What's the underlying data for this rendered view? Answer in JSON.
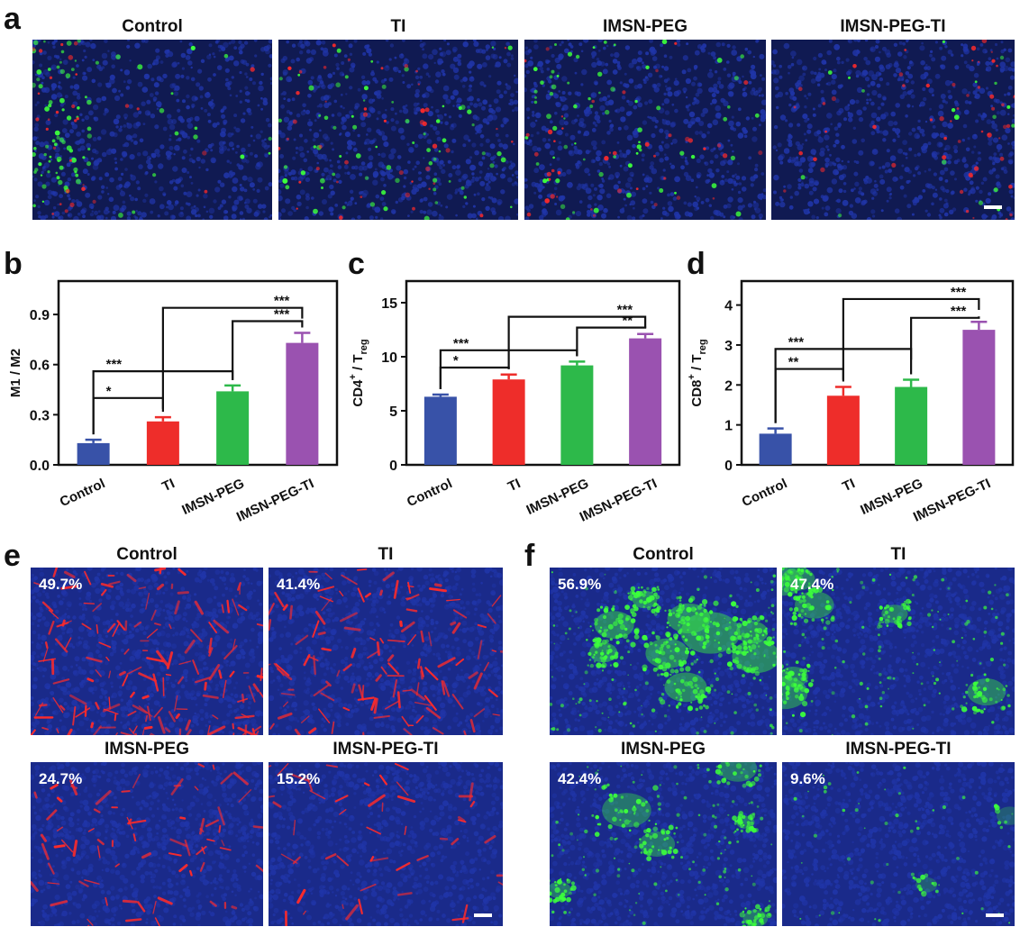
{
  "panel_a": {
    "label": "a",
    "images": [
      {
        "title": "Control"
      },
      {
        "title": "TI"
      },
      {
        "title": "IMSN-PEG"
      },
      {
        "title": "IMSN-PEG-TI"
      }
    ]
  },
  "chart_data": [
    {
      "label": "b",
      "type": "bar",
      "categories": [
        "Control",
        "TI",
        "IMSN-PEG",
        "IMSN-PEG-TI"
      ],
      "values": [
        0.13,
        0.26,
        0.44,
        0.73
      ],
      "errors": [
        0.02,
        0.025,
        0.035,
        0.06
      ],
      "colors": [
        "#3852a8",
        "#ee2d2a",
        "#2db94a",
        "#9a52b0"
      ],
      "ylabel": "M1 / M2",
      "ylim": [
        0,
        1.1
      ],
      "yticks": [
        0.0,
        0.3,
        0.6,
        0.9
      ],
      "ytick_labels": [
        "0.0",
        "0.3",
        "0.6",
        "0.9"
      ],
      "significance": [
        {
          "from": 0,
          "to": 1,
          "level": 0.4,
          "label": "*"
        },
        {
          "from": 0,
          "to": 2,
          "level": 0.56,
          "label": "***"
        },
        {
          "from": 1,
          "to": 3,
          "level": 0.94,
          "label": "***"
        },
        {
          "from": 2,
          "to": 3,
          "level": 0.86,
          "label": "***"
        }
      ]
    },
    {
      "label": "c",
      "type": "bar",
      "categories": [
        "Control",
        "TI",
        "IMSN-PEG",
        "IMSN-PEG-TI"
      ],
      "values": [
        6.3,
        7.9,
        9.2,
        11.7
      ],
      "errors": [
        0.2,
        0.45,
        0.35,
        0.4
      ],
      "colors": [
        "#3852a8",
        "#ee2d2a",
        "#2db94a",
        "#9a52b0"
      ],
      "ylabel_main": "CD4",
      "ylabel_sup": "+",
      "ylabel_mid": " / T",
      "ylabel_sub": "reg",
      "ylim": [
        0,
        17
      ],
      "yticks": [
        0,
        5,
        10,
        15
      ],
      "ytick_labels": [
        "0",
        "5",
        "10",
        "15"
      ],
      "significance": [
        {
          "from": 0,
          "to": 1,
          "level": 9.0,
          "label": "*"
        },
        {
          "from": 0,
          "to": 2,
          "level": 10.6,
          "label": "***"
        },
        {
          "from": 1,
          "to": 3,
          "level": 13.7,
          "label": "***"
        },
        {
          "from": 2,
          "to": 3,
          "level": 12.7,
          "label": "**"
        }
      ]
    },
    {
      "label": "d",
      "type": "bar",
      "categories": [
        "Control",
        "TI",
        "IMSN-PEG",
        "IMSN-PEG-TI"
      ],
      "values": [
        0.78,
        1.73,
        1.95,
        3.38
      ],
      "errors": [
        0.13,
        0.22,
        0.18,
        0.2
      ],
      "colors": [
        "#3852a8",
        "#ee2d2a",
        "#2db94a",
        "#9a52b0"
      ],
      "ylabel_main": "CD8",
      "ylabel_sup": "+",
      "ylabel_mid": " / T",
      "ylabel_sub": "reg",
      "ylim": [
        0,
        4.6
      ],
      "yticks": [
        0,
        1,
        2,
        3,
        4
      ],
      "ytick_labels": [
        "0",
        "1",
        "2",
        "3",
        "4"
      ],
      "significance": [
        {
          "from": 0,
          "to": 1,
          "level": 2.4,
          "label": "**"
        },
        {
          "from": 0,
          "to": 2,
          "level": 2.9,
          "label": "***"
        },
        {
          "from": 1,
          "to": 3,
          "level": 4.15,
          "label": "***"
        },
        {
          "from": 2,
          "to": 3,
          "level": 3.68,
          "label": "***"
        }
      ]
    }
  ],
  "panel_e": {
    "label": "e",
    "images": [
      {
        "title": "Control",
        "percent": "49.7%"
      },
      {
        "title": "TI",
        "percent": "41.4%"
      },
      {
        "title": "IMSN-PEG",
        "percent": "24.7%"
      },
      {
        "title": "IMSN-PEG-TI",
        "percent": "15.2%"
      }
    ]
  },
  "panel_f": {
    "label": "f",
    "images": [
      {
        "title": "Control",
        "percent": "56.9%"
      },
      {
        "title": "TI",
        "percent": "47.4%"
      },
      {
        "title": "IMSN-PEG",
        "percent": "42.4%"
      },
      {
        "title": "IMSN-PEG-TI",
        "percent": "9.6%"
      }
    ]
  },
  "colors": {
    "nuclei_blue": "#2035a8",
    "stain_red": "#ff2a2a",
    "stain_green": "#3cff3c"
  }
}
